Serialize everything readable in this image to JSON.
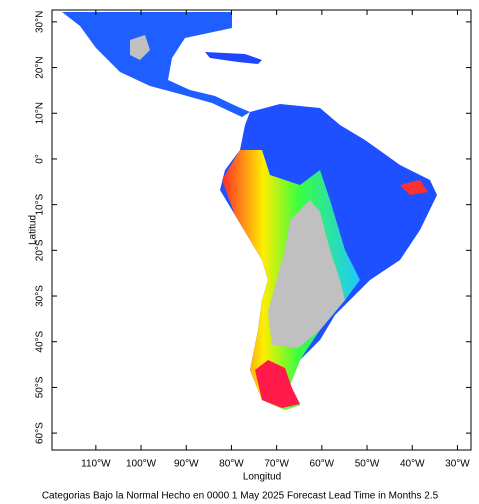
{
  "map": {
    "title": "Categorias Bajo la Normal Hecho en 0000 1 May 2025 Forecast Lead Time in Months 2.5",
    "x_label": "Longitud",
    "y_label": "Latitud",
    "xlim": [
      -119.7,
      -27
    ],
    "ylim": [
      -63.7,
      32.6
    ],
    "xticks": [
      {
        "value": -110,
        "label": "110°W"
      },
      {
        "value": -100,
        "label": "100°W"
      },
      {
        "value": -90,
        "label": "90°W"
      },
      {
        "value": -80,
        "label": "80°W"
      },
      {
        "value": -70,
        "label": "70°W"
      },
      {
        "value": -60,
        "label": "60°W"
      },
      {
        "value": -50,
        "label": "50°W"
      },
      {
        "value": -40,
        "label": "40°W"
      },
      {
        "value": -30,
        "label": "30°W"
      }
    ],
    "yticks": [
      {
        "value": 30,
        "label": "30°N"
      },
      {
        "value": 20,
        "label": "20°N"
      },
      {
        "value": 10,
        "label": "10°N"
      },
      {
        "value": 0,
        "label": "0°"
      },
      {
        "value": -10,
        "label": "10°S"
      },
      {
        "value": -20,
        "label": "20°S"
      },
      {
        "value": -30,
        "label": "30°S"
      },
      {
        "value": -40,
        "label": "40°S"
      },
      {
        "value": -50,
        "label": "50°S"
      },
      {
        "value": -60,
        "label": "60°S"
      }
    ]
  }
}
